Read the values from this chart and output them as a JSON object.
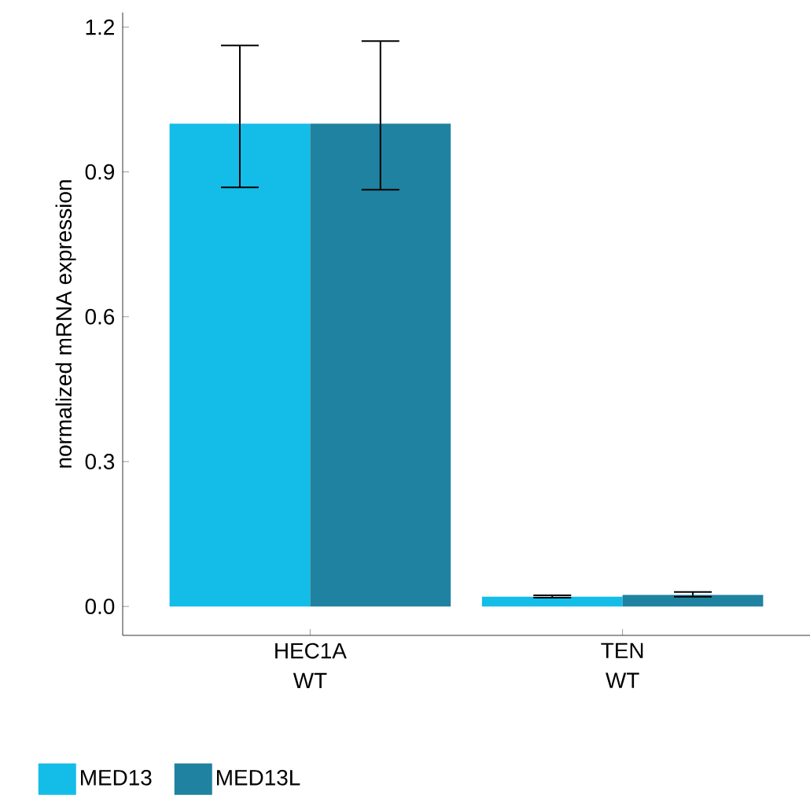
{
  "chart_data": {
    "type": "bar",
    "ylabel": "normalized mRNA expression",
    "categories": [
      "HEC1A WT",
      "TEN WT"
    ],
    "series": [
      {
        "name": "MED13",
        "color": "#13bde8",
        "values": [
          1.0,
          0.02
        ],
        "errors": [
          [
            0.868,
            1.162
          ],
          [
            0.018,
            0.023
          ]
        ]
      },
      {
        "name": "MED13L",
        "color": "#1f82a0",
        "values": [
          1.0,
          0.024
        ],
        "errors": [
          [
            0.863,
            1.171
          ],
          [
            0.02,
            0.03
          ]
        ]
      }
    ],
    "ylim": [
      -0.06,
      1.23
    ],
    "yticks": [
      {
        "value": 0,
        "label": "0.0"
      },
      {
        "value": 0.3,
        "label": "0.3"
      },
      {
        "value": 0.6,
        "label": "0.6"
      },
      {
        "value": 0.9,
        "label": "0.9"
      },
      {
        "value": 1.2,
        "label": "1.2"
      }
    ],
    "grid": false,
    "legend": "bottom left"
  }
}
